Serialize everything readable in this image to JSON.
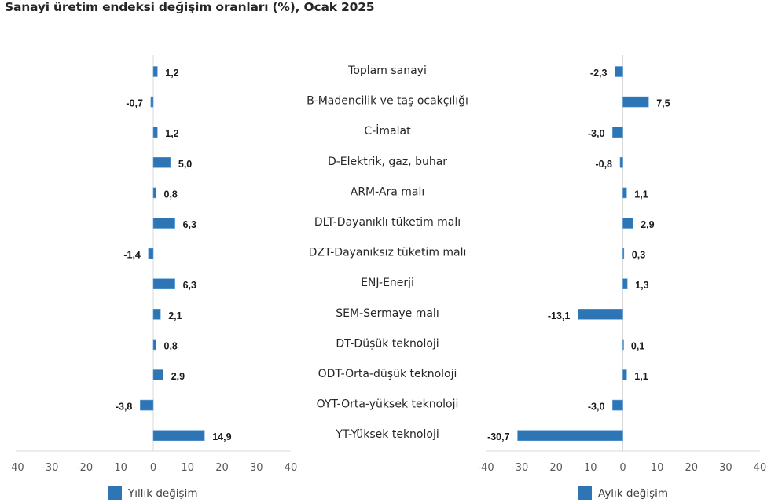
{
  "title": "Sanayi üretim endeksi değişim oranları (%), Ocak 2025",
  "chart_data": [
    {
      "type": "bar",
      "orientation": "horizontal",
      "series_name": "Yıllık değişim",
      "color": "#2E75B6",
      "categories": [
        "Toplam sanayi",
        "B-Madencilik ve taş ocakçılığı",
        "C-İmalat",
        "D-Elektrik, gaz, buhar",
        "ARM-Ara malı",
        "DLT-Dayanıklı tüketim malı",
        "DZT-Dayanıksız tüketim malı",
        "ENJ-Enerji",
        "SEM-Sermaye malı",
        "DT-Düşük teknoloji",
        "ODT-Orta-düşük teknoloji",
        "OYT-Orta-yüksek teknoloji",
        "YT-Yüksek teknoloji"
      ],
      "values": [
        1.2,
        -0.7,
        1.2,
        5.0,
        0.8,
        6.3,
        -1.4,
        6.3,
        2.1,
        0.8,
        2.9,
        -3.8,
        14.9
      ],
      "value_labels": [
        "1,2",
        "-0,7",
        "1,2",
        "5,0",
        "0,8",
        "6,3",
        "-1,4",
        "6,3",
        "2,1",
        "0,8",
        "2,9",
        "-3,8",
        "14,9"
      ],
      "xlim": [
        -40,
        40
      ],
      "xticks": [
        -40,
        -30,
        -20,
        -10,
        0,
        10,
        20,
        30,
        40
      ],
      "xtick_labels": [
        "-40",
        "-30",
        "-20",
        "-10",
        "0",
        "10",
        "20",
        "30",
        "40"
      ],
      "legend": "bottom",
      "grid": false
    },
    {
      "type": "bar",
      "orientation": "horizontal",
      "series_name": "Aylık değişim",
      "color": "#2E75B6",
      "categories": [
        "Toplam sanayi",
        "B-Madencilik ve taş ocakçılığı",
        "C-İmalat",
        "D-Elektrik, gaz, buhar",
        "ARM-Ara malı",
        "DLT-Dayanıklı tüketim malı",
        "DZT-Dayanıksız tüketim malı",
        "ENJ-Enerji",
        "SEM-Sermaye malı",
        "DT-Düşük teknoloji",
        "ODT-Orta-düşük teknoloji",
        "OYT-Orta-yüksek teknoloji",
        "YT-Yüksek teknoloji"
      ],
      "values": [
        -2.3,
        7.5,
        -3.0,
        -0.8,
        1.1,
        2.9,
        0.3,
        1.3,
        -13.1,
        0.1,
        1.1,
        -3.0,
        -30.7
      ],
      "value_labels": [
        "-2,3",
        "7,5",
        "-3,0",
        "-0,8",
        "1,1",
        "2,9",
        "0,3",
        "1,3",
        "-13,1",
        "0,1",
        "1,1",
        "-3,0",
        "-30,7"
      ],
      "xlim": [
        -40,
        40
      ],
      "xticks": [
        -40,
        -30,
        -20,
        -10,
        0,
        10,
        20,
        30,
        40
      ],
      "xtick_labels": [
        "-40",
        "-30",
        "-20",
        "-10",
        "0",
        "10",
        "20",
        "30",
        "40"
      ],
      "legend": "bottom",
      "grid": false
    }
  ]
}
